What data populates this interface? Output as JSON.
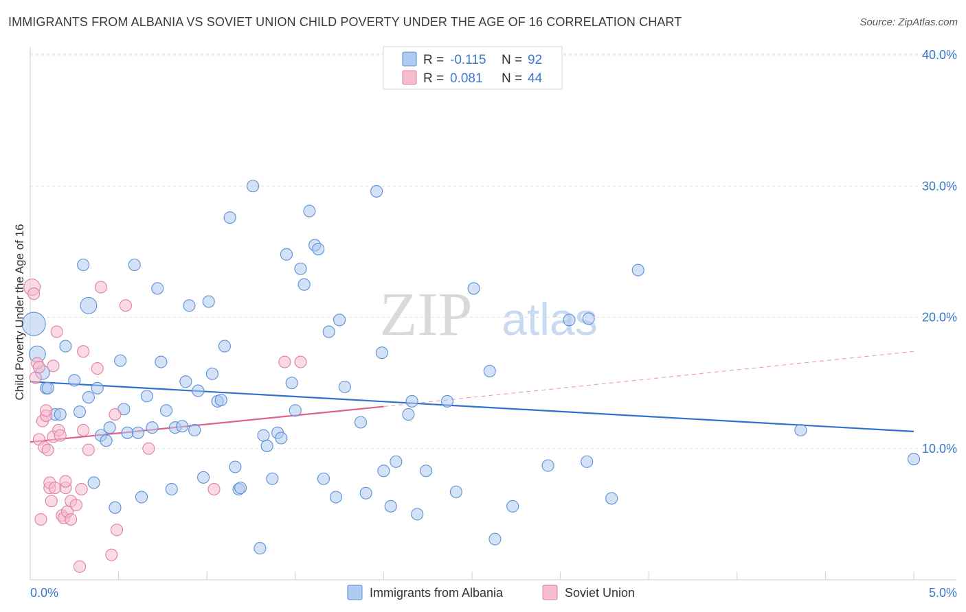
{
  "title": "IMMIGRANTS FROM ALBANIA VS SOVIET UNION CHILD POVERTY UNDER THE AGE OF 16 CORRELATION CHART",
  "source": "Source: ZipAtlas.com",
  "watermark": {
    "zip": "ZIP",
    "atlas": "atlas"
  },
  "colors": {
    "blue": "#5b8fd6",
    "blue_fill": "#aecbf0",
    "pink": "#e07fa0",
    "pink_fill": "#f6bcd0",
    "blue_line": "#2f6fcd",
    "pink_line": "#e0608a",
    "tick_text": "#3a78c8"
  },
  "legend": {
    "rows": [
      {
        "r_label": "R = ",
        "r_value": "-0.115",
        "n_label": "N = ",
        "n_value": "92"
      },
      {
        "r_label": "R = ",
        "r_value": "0.081",
        "n_label": "N = ",
        "n_value": "44"
      }
    ]
  },
  "chart_data": {
    "type": "scatter",
    "xlabel": "",
    "ylabel": "Child Poverty Under the Age of 16",
    "xlim": [
      0,
      5
    ],
    "ylim": [
      0,
      40
    ],
    "x_tick_labels": [
      "0.0%",
      "5.0%"
    ],
    "y_tick_labels": [
      "10.0%",
      "20.0%",
      "30.0%",
      "40.0%"
    ],
    "y_ticks": [
      10,
      20,
      30,
      40
    ],
    "grid": true,
    "legend_position": "top-center",
    "series": [
      {
        "name": "Immigrants from Albania",
        "color": "#5b8fd6",
        "trend": {
          "x": [
            0.0,
            5.0
          ],
          "y": [
            15.1,
            11.3
          ]
        },
        "points": [
          [
            0.02,
            19.5
          ],
          [
            0.04,
            17.2
          ],
          [
            0.07,
            15.8
          ],
          [
            0.09,
            14.6
          ],
          [
            0.1,
            14.6
          ],
          [
            0.14,
            12.6
          ],
          [
            0.17,
            12.6
          ],
          [
            0.2,
            17.8
          ],
          [
            0.25,
            15.2
          ],
          [
            0.28,
            12.8
          ],
          [
            0.3,
            24.0
          ],
          [
            0.33,
            20.9
          ],
          [
            0.33,
            13.9
          ],
          [
            0.36,
            7.4
          ],
          [
            0.38,
            14.6
          ],
          [
            0.4,
            11.0
          ],
          [
            0.43,
            10.6
          ],
          [
            0.45,
            11.6
          ],
          [
            0.48,
            5.5
          ],
          [
            0.51,
            16.7
          ],
          [
            0.53,
            13.0
          ],
          [
            0.55,
            11.2
          ],
          [
            0.59,
            24.0
          ],
          [
            0.61,
            11.2
          ],
          [
            0.63,
            6.3
          ],
          [
            0.66,
            14.0
          ],
          [
            0.69,
            11.6
          ],
          [
            0.72,
            22.2
          ],
          [
            0.74,
            16.6
          ],
          [
            0.77,
            12.9
          ],
          [
            0.8,
            6.9
          ],
          [
            0.82,
            11.6
          ],
          [
            0.86,
            11.7
          ],
          [
            0.88,
            15.1
          ],
          [
            0.9,
            20.9
          ],
          [
            0.93,
            11.4
          ],
          [
            0.95,
            14.4
          ],
          [
            0.98,
            7.8
          ],
          [
            1.01,
            21.2
          ],
          [
            1.03,
            15.7
          ],
          [
            1.06,
            13.6
          ],
          [
            1.08,
            13.7
          ],
          [
            1.1,
            17.8
          ],
          [
            1.13,
            27.6
          ],
          [
            1.16,
            8.6
          ],
          [
            1.18,
            6.9
          ],
          [
            1.19,
            7.0
          ],
          [
            1.26,
            30.0
          ],
          [
            1.3,
            2.4
          ],
          [
            1.32,
            11.0
          ],
          [
            1.34,
            10.2
          ],
          [
            1.37,
            7.7
          ],
          [
            1.4,
            11.2
          ],
          [
            1.42,
            10.8
          ],
          [
            1.45,
            24.8
          ],
          [
            1.48,
            15.0
          ],
          [
            1.5,
            12.9
          ],
          [
            1.53,
            23.7
          ],
          [
            1.55,
            22.5
          ],
          [
            1.58,
            28.1
          ],
          [
            1.61,
            25.5
          ],
          [
            1.63,
            25.2
          ],
          [
            1.66,
            7.7
          ],
          [
            1.69,
            18.9
          ],
          [
            1.73,
            6.3
          ],
          [
            1.75,
            19.8
          ],
          [
            1.78,
            14.7
          ],
          [
            1.87,
            12.0
          ],
          [
            1.9,
            6.6
          ],
          [
            1.96,
            29.6
          ],
          [
            1.99,
            17.3
          ],
          [
            2.0,
            8.3
          ],
          [
            2.04,
            5.6
          ],
          [
            2.07,
            9.0
          ],
          [
            2.14,
            12.6
          ],
          [
            2.16,
            13.6
          ],
          [
            2.19,
            5.0
          ],
          [
            2.24,
            8.3
          ],
          [
            2.36,
            13.6
          ],
          [
            2.41,
            6.7
          ],
          [
            2.51,
            22.2
          ],
          [
            2.6,
            15.9
          ],
          [
            2.63,
            3.1
          ],
          [
            2.73,
            5.6
          ],
          [
            2.93,
            8.7
          ],
          [
            3.05,
            19.8
          ],
          [
            3.15,
            9.0
          ],
          [
            3.16,
            19.9
          ],
          [
            3.29,
            6.2
          ],
          [
            3.44,
            23.6
          ],
          [
            4.36,
            11.4
          ],
          [
            5.0,
            9.2
          ]
        ],
        "sizes": [
          20,
          14,
          12,
          10,
          10,
          10,
          10,
          10,
          10,
          10,
          10,
          14,
          10,
          10,
          10,
          10,
          10,
          10,
          10,
          10,
          10,
          10,
          10,
          10,
          10,
          10,
          10,
          10,
          10,
          10,
          10,
          10,
          10,
          10,
          10,
          10,
          10,
          10,
          10,
          10,
          10,
          10,
          10,
          10,
          10,
          10,
          10,
          10,
          10,
          10,
          10,
          10,
          10,
          10,
          10,
          10,
          10,
          10,
          10,
          10,
          10,
          10,
          10,
          10,
          10,
          10,
          10,
          10,
          10,
          10,
          10,
          10,
          10,
          10,
          10,
          10,
          10,
          10,
          10,
          10,
          10,
          10,
          10,
          10,
          10,
          10,
          10,
          10,
          10,
          10,
          10,
          10
        ]
      },
      {
        "name": "Soviet Union",
        "color": "#e07fa0",
        "trend": {
          "x": [
            0.0,
            2.0
          ],
          "y": [
            10.5,
            13.2
          ]
        },
        "trend_dashed": {
          "x": [
            2.0,
            5.0
          ],
          "y": [
            13.2,
            17.4
          ]
        },
        "points": [
          [
            0.01,
            22.3
          ],
          [
            0.02,
            21.8
          ],
          [
            0.03,
            15.4
          ],
          [
            0.04,
            16.5
          ],
          [
            0.05,
            16.2
          ],
          [
            0.05,
            10.7
          ],
          [
            0.07,
            12.1
          ],
          [
            0.08,
            10.1
          ],
          [
            0.09,
            12.5
          ],
          [
            0.09,
            12.9
          ],
          [
            0.1,
            9.9
          ],
          [
            0.11,
            7.0
          ],
          [
            0.11,
            7.4
          ],
          [
            0.12,
            6.0
          ],
          [
            0.13,
            10.9
          ],
          [
            0.13,
            16.3
          ],
          [
            0.14,
            7.0
          ],
          [
            0.15,
            18.9
          ],
          [
            0.16,
            11.4
          ],
          [
            0.17,
            11.0
          ],
          [
            0.18,
            4.9
          ],
          [
            0.19,
            4.7
          ],
          [
            0.2,
            7.0
          ],
          [
            0.2,
            7.5
          ],
          [
            0.21,
            5.2
          ],
          [
            0.23,
            4.6
          ],
          [
            0.23,
            6.0
          ],
          [
            0.26,
            5.7
          ],
          [
            0.28,
            1.0
          ],
          [
            0.29,
            6.9
          ],
          [
            0.3,
            11.4
          ],
          [
            0.3,
            17.4
          ],
          [
            0.33,
            9.9
          ],
          [
            0.38,
            16.1
          ],
          [
            0.4,
            22.3
          ],
          [
            0.46,
            1.9
          ],
          [
            0.48,
            12.6
          ],
          [
            0.49,
            3.8
          ],
          [
            0.54,
            20.9
          ],
          [
            0.67,
            10.0
          ],
          [
            1.04,
            6.9
          ],
          [
            1.44,
            16.6
          ],
          [
            1.53,
            16.6
          ],
          [
            0.06,
            4.6
          ]
        ],
        "sizes": [
          14,
          10,
          10,
          10,
          10,
          10,
          10,
          10,
          10,
          10,
          10,
          10,
          10,
          10,
          10,
          10,
          10,
          10,
          10,
          10,
          10,
          10,
          10,
          10,
          10,
          10,
          10,
          10,
          10,
          10,
          10,
          10,
          10,
          10,
          10,
          10,
          10,
          10,
          10,
          10,
          10,
          10,
          10,
          10
        ]
      }
    ]
  }
}
